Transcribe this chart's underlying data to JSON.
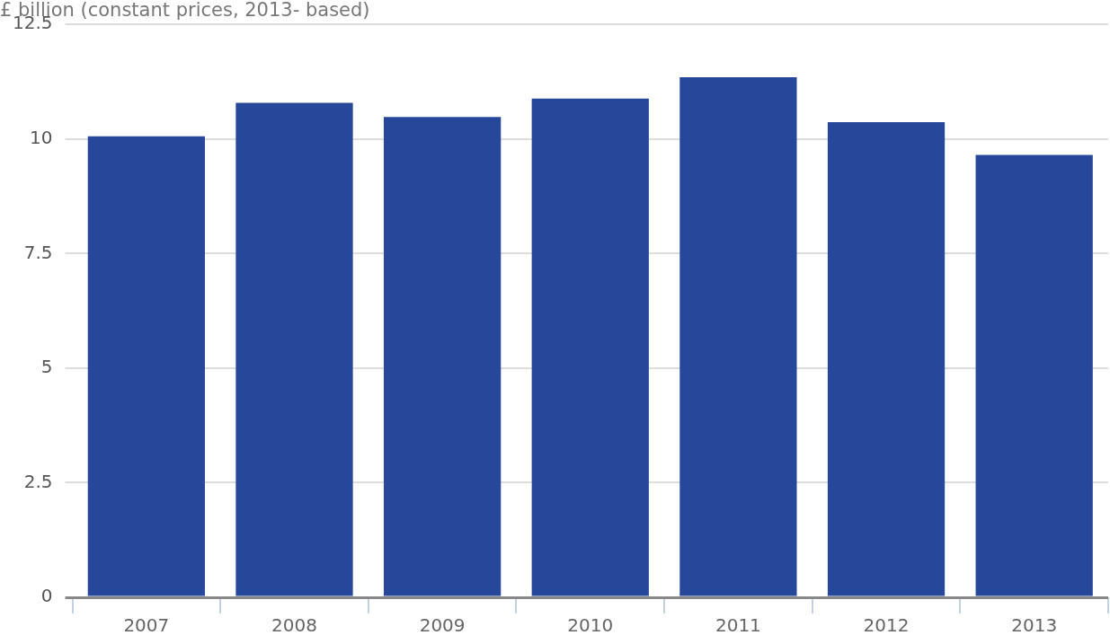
{
  "chart_data": {
    "type": "bar",
    "ylabel": "£ billion (constant prices, 2013- based)",
    "categories": [
      "2007",
      "2008",
      "2009",
      "2010",
      "2011",
      "2012",
      "2013"
    ],
    "values": [
      10.06,
      10.79,
      10.48,
      10.88,
      11.35,
      10.37,
      9.65
    ],
    "color": "#27479a",
    "ylim": [
      0,
      12.5
    ],
    "yticks": [
      0,
      2.5,
      5,
      7.5,
      10,
      12.5
    ],
    "grid": "y",
    "legend": false
  }
}
